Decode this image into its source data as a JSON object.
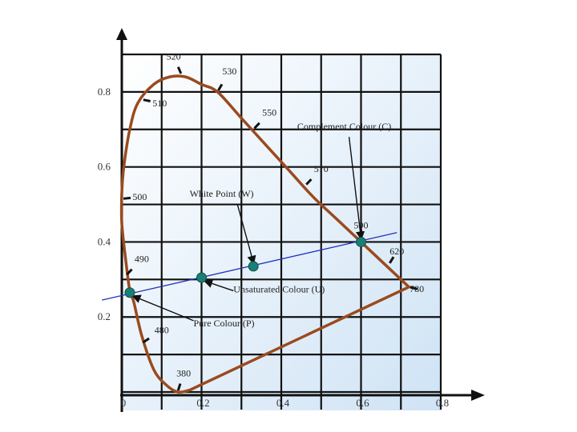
{
  "chart_data": {
    "type": "diagram",
    "x_ticks": [
      "0",
      "0.2",
      "0.4",
      "0.6",
      "0.8"
    ],
    "y_ticks": [
      "0.2",
      "0.4",
      "0.6",
      "0.8"
    ],
    "xlim": [
      0,
      0.8
    ],
    "ylim": [
      0,
      0.9
    ],
    "grid": true,
    "locus": [
      [
        0.17,
        0.005
      ],
      [
        0.14,
        0.0
      ],
      [
        0.11,
        0.02
      ],
      [
        0.08,
        0.06
      ],
      [
        0.05,
        0.15
      ],
      [
        0.03,
        0.24
      ],
      [
        0.02,
        0.27
      ],
      [
        0.01,
        0.35
      ],
      [
        0.0,
        0.45
      ],
      [
        0.0,
        0.53
      ],
      [
        0.005,
        0.6
      ],
      [
        0.02,
        0.7
      ],
      [
        0.04,
        0.77
      ],
      [
        0.08,
        0.82
      ],
      [
        0.12,
        0.84
      ],
      [
        0.16,
        0.84
      ],
      [
        0.2,
        0.82
      ],
      [
        0.24,
        0.8
      ],
      [
        0.3,
        0.73
      ],
      [
        0.36,
        0.66
      ],
      [
        0.42,
        0.59
      ],
      [
        0.48,
        0.52
      ],
      [
        0.54,
        0.46
      ],
      [
        0.6,
        0.4
      ],
      [
        0.66,
        0.34
      ],
      [
        0.7,
        0.3
      ],
      [
        0.72,
        0.28
      ]
    ],
    "purple_line_close": true,
    "wavelength_labels": [
      {
        "label": "520",
        "x": 0.15,
        "y": 0.845,
        "tx": 0.13,
        "ty": 0.895
      },
      {
        "label": "530",
        "x": 0.24,
        "y": 0.8,
        "tx": 0.27,
        "ty": 0.855
      },
      {
        "label": "510",
        "x": 0.05,
        "y": 0.78,
        "tx": 0.095,
        "ty": 0.77
      },
      {
        "label": "550",
        "x": 0.33,
        "y": 0.7,
        "tx": 0.37,
        "ty": 0.745
      },
      {
        "label": "570",
        "x": 0.46,
        "y": 0.55,
        "tx": 0.5,
        "ty": 0.595
      },
      {
        "label": "500",
        "x": 0.0,
        "y": 0.515,
        "tx": 0.045,
        "ty": 0.52
      },
      {
        "label": "590",
        "x": 0.6,
        "y": 0.41,
        "tx": 0.6,
        "ty": 0.445
      },
      {
        "label": "620",
        "x": 0.67,
        "y": 0.34,
        "tx": 0.69,
        "ty": 0.375
      },
      {
        "label": "780",
        "x": 0.72,
        "y": 0.28,
        "tx": 0.74,
        "ty": 0.275
      },
      {
        "label": "490",
        "x": 0.01,
        "y": 0.31,
        "tx": 0.05,
        "ty": 0.355
      },
      {
        "label": "480",
        "x": 0.05,
        "y": 0.13,
        "tx": 0.1,
        "ty": 0.165
      },
      {
        "label": "380",
        "x": 0.14,
        "y": 0.0,
        "tx": 0.155,
        "ty": 0.05
      }
    ],
    "line": {
      "x1": -0.05,
      "y1": 0.245,
      "x2": 0.69,
      "y2": 0.425
    },
    "points": [
      {
        "name": "pure-colour-point",
        "x": 0.02,
        "y": 0.265
      },
      {
        "name": "unsaturated-colour-point",
        "x": 0.2,
        "y": 0.305
      },
      {
        "name": "white-point",
        "x": 0.33,
        "y": 0.335
      },
      {
        "name": "complement-colour-point",
        "x": 0.6,
        "y": 0.4
      }
    ],
    "annotations": [
      {
        "text": "Complement Colour (C)",
        "tx": 0.44,
        "ty": 0.7,
        "ax": 0.6,
        "ay": 0.41,
        "sx": 0.57,
        "sy": 0.68
      },
      {
        "text": "White Point (W)",
        "tx": 0.17,
        "ty": 0.52,
        "ax": 0.33,
        "ay": 0.345,
        "sx": 0.29,
        "sy": 0.5
      },
      {
        "text": "Unsaturated Colour (U)",
        "tx": 0.28,
        "ty": 0.265,
        "ax": 0.21,
        "ay": 0.295,
        "sx": 0.28,
        "sy": 0.27
      },
      {
        "text": "Pure Colour (P)",
        "tx": 0.18,
        "ty": 0.175,
        "ax": 0.03,
        "ay": 0.255,
        "sx": 0.18,
        "sy": 0.19
      }
    ],
    "colors": {
      "locus": "#9a4a1e",
      "line": "#2233bb",
      "point": "#1a7f74",
      "grid": "#111111",
      "bg_top": "#ffffff",
      "bg_bottom": "#cfe3f5"
    }
  }
}
